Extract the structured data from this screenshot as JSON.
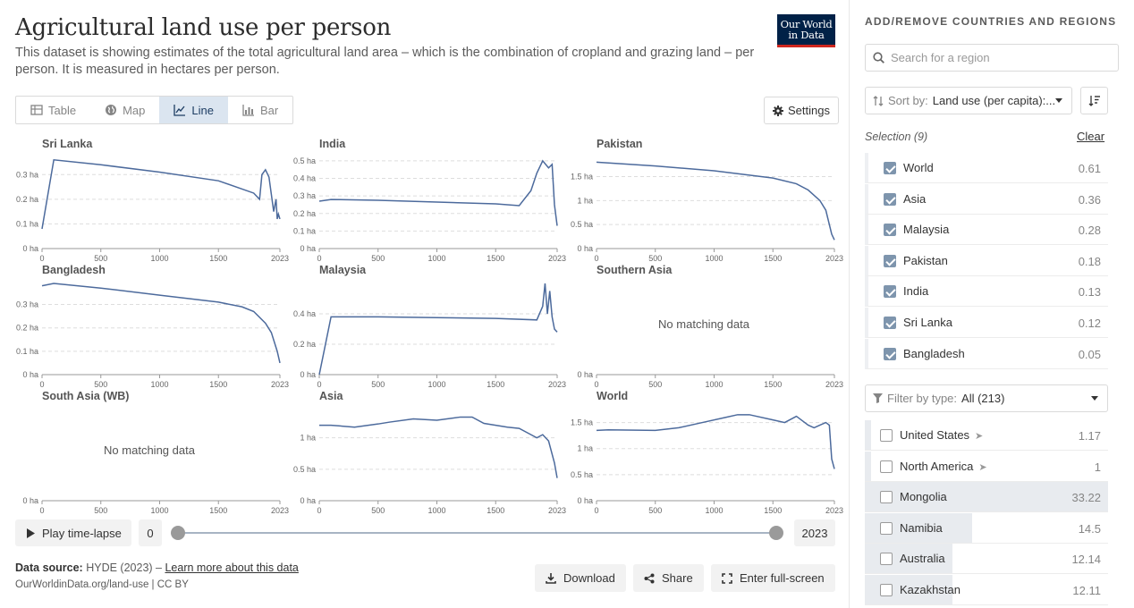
{
  "header": {
    "title": "Agricultural land use per person",
    "subtitle": "This dataset is showing estimates of the total agricultural land area – which is the combination of cropland and grazing land – per person. It is measured in hectares per person.",
    "logo_line1": "Our World",
    "logo_line2": "in Data"
  },
  "tabs": [
    {
      "label": "Table",
      "icon": "table-icon"
    },
    {
      "label": "Map",
      "icon": "globe-icon"
    },
    {
      "label": "Line",
      "icon": "line-chart-icon",
      "active": true
    },
    {
      "label": "Bar",
      "icon": "bar-chart-icon"
    }
  ],
  "settings_label": "Settings",
  "no_data_text": "No matching data",
  "chart_data": [
    {
      "type": "line",
      "title": "Sri Lanka",
      "x_ticks": [
        "0",
        "500",
        "1000",
        "1500",
        "2023"
      ],
      "y_ticks": [
        "0 ha",
        "0.1 ha",
        "0.2 ha",
        "0.3 ha"
      ],
      "ylim": [
        0,
        0.37
      ],
      "x": [
        0,
        100,
        500,
        1000,
        1500,
        1800,
        1850,
        1870,
        1900,
        1930,
        1950,
        1970,
        1990,
        2000,
        2010,
        2023
      ],
      "y": [
        0.08,
        0.36,
        0.34,
        0.31,
        0.275,
        0.225,
        0.2,
        0.3,
        0.32,
        0.29,
        0.22,
        0.15,
        0.2,
        0.12,
        0.14,
        0.12
      ]
    },
    {
      "type": "line",
      "title": "India",
      "x_ticks": [
        "0",
        "500",
        "1000",
        "1500",
        "2023"
      ],
      "y_ticks": [
        "0 ha",
        "0.1 ha",
        "0.2 ha",
        "0.3 ha",
        "0.4 ha",
        "0.5 ha"
      ],
      "ylim": [
        0,
        0.52
      ],
      "x": [
        0,
        100,
        500,
        1000,
        1500,
        1700,
        1800,
        1850,
        1900,
        1950,
        1980,
        2000,
        2023
      ],
      "y": [
        0.27,
        0.28,
        0.275,
        0.265,
        0.255,
        0.245,
        0.33,
        0.43,
        0.5,
        0.46,
        0.48,
        0.25,
        0.13
      ]
    },
    {
      "type": "line",
      "title": "Pakistan",
      "x_ticks": [
        "0",
        "500",
        "1000",
        "1500",
        "2023"
      ],
      "y_ticks": [
        "0 ha",
        "0.5 ha",
        "1 ha",
        "1.5 ha"
      ],
      "ylim": [
        0,
        1.9
      ],
      "x": [
        0,
        500,
        1000,
        1500,
        1700,
        1800,
        1900,
        1950,
        2000,
        2023
      ],
      "y": [
        1.8,
        1.72,
        1.62,
        1.47,
        1.35,
        1.22,
        1.0,
        0.8,
        0.3,
        0.18
      ]
    },
    {
      "type": "line",
      "title": "Bangladesh",
      "x_ticks": [
        "0",
        "500",
        "1000",
        "1500",
        "2023"
      ],
      "y_ticks": [
        "0 ha",
        "0.1 ha",
        "0.2 ha",
        "0.3 ha"
      ],
      "ylim": [
        0,
        0.39
      ],
      "x": [
        0,
        100,
        500,
        1000,
        1500,
        1700,
        1800,
        1900,
        1950,
        2000,
        2023
      ],
      "y": [
        0.38,
        0.39,
        0.37,
        0.34,
        0.31,
        0.29,
        0.27,
        0.22,
        0.18,
        0.1,
        0.05
      ]
    },
    {
      "type": "line",
      "title": "Malaysia",
      "x_ticks": [
        "0",
        "500",
        "1000",
        "1500",
        "2023"
      ],
      "y_ticks": [
        "0 ha",
        "0.2 ha",
        "0.4 ha"
      ],
      "ylim": [
        0,
        0.6
      ],
      "x": [
        0,
        100,
        500,
        1000,
        1500,
        1850,
        1900,
        1920,
        1940,
        1960,
        1980,
        2000,
        2023
      ],
      "y": [
        0.0,
        0.38,
        0.38,
        0.375,
        0.37,
        0.36,
        0.45,
        0.6,
        0.4,
        0.55,
        0.38,
        0.3,
        0.28
      ]
    },
    {
      "type": "line",
      "title": "Southern Asia",
      "x_ticks": [
        "0",
        "500",
        "1000",
        "1500",
        "2023"
      ],
      "y_ticks": [
        "0 ha"
      ],
      "ylim": [
        0,
        1
      ],
      "no_data": true
    },
    {
      "type": "line",
      "title": "South Asia (WB)",
      "x_ticks": [
        "0",
        "500",
        "1000",
        "1500",
        "2023"
      ],
      "y_ticks": [
        "0 ha"
      ],
      "ylim": [
        0,
        1
      ],
      "no_data": true
    },
    {
      "type": "line",
      "title": "Asia",
      "x_ticks": [
        "0",
        "500",
        "1000",
        "1500",
        "2023"
      ],
      "y_ticks": [
        "0 ha",
        "0.5 ha",
        "1 ha"
      ],
      "ylim": [
        0,
        1.45
      ],
      "x": [
        0,
        100,
        300,
        500,
        600,
        800,
        1000,
        1200,
        1300,
        1400,
        1500,
        1600,
        1700,
        1800,
        1850,
        1900,
        1950,
        2000,
        2023
      ],
      "y": [
        1.2,
        1.2,
        1.17,
        1.22,
        1.25,
        1.3,
        1.28,
        1.33,
        1.33,
        1.23,
        1.2,
        1.17,
        1.15,
        1.05,
        1.0,
        1.05,
        0.95,
        0.6,
        0.36
      ]
    },
    {
      "type": "line",
      "title": "World",
      "x_ticks": [
        "0",
        "500",
        "1000",
        "1500",
        "2023"
      ],
      "y_ticks": [
        "0 ha",
        "0.5 ha",
        "1 ha",
        "1.5 ha"
      ],
      "ylim": [
        0,
        1.75
      ],
      "x": [
        0,
        100,
        500,
        700,
        900,
        1100,
        1200,
        1300,
        1500,
        1600,
        1700,
        1800,
        1850,
        1900,
        1950,
        1980,
        2000,
        2023
      ],
      "y": [
        1.35,
        1.36,
        1.35,
        1.4,
        1.5,
        1.6,
        1.65,
        1.65,
        1.55,
        1.5,
        1.62,
        1.45,
        1.4,
        1.45,
        1.5,
        1.45,
        0.8,
        0.61
      ]
    }
  ],
  "controls": {
    "play_label": "Play time-lapse",
    "start_year": "0",
    "end_year": "2023"
  },
  "footer": {
    "source_label": "Data source:",
    "source_text": "HYDE (2023) –",
    "source_link": "Learn more about this data",
    "url": "OurWorldinData.org/land-use | CC BY",
    "download": "Download",
    "share": "Share",
    "fullscreen": "Enter full-screen"
  },
  "sidebar": {
    "heading": "ADD/REMOVE COUNTRIES AND REGIONS",
    "search_placeholder": "Search for a region",
    "sort_label": "Sort by:",
    "sort_value": "Land use (per capita):...",
    "selection_label": "Selection (9)",
    "clear_label": "Clear",
    "selected": [
      {
        "name": "World",
        "value": "0.61"
      },
      {
        "name": "Asia",
        "value": "0.36"
      },
      {
        "name": "Malaysia",
        "value": "0.28"
      },
      {
        "name": "Pakistan",
        "value": "0.18"
      },
      {
        "name": "India",
        "value": "0.13"
      },
      {
        "name": "Sri Lanka",
        "value": "0.12"
      },
      {
        "name": "Bangladesh",
        "value": "0.05"
      }
    ],
    "filter_label": "Filter by type:",
    "filter_value": "All (213)",
    "others": [
      {
        "name": "United States",
        "value": "1.17",
        "arrow": true,
        "fraction": 0.015
      },
      {
        "name": "North America",
        "value": "1",
        "arrow": true,
        "fraction": 0.02
      },
      {
        "name": "Mongolia",
        "value": "33.22",
        "fraction": 1.0
      },
      {
        "name": "Namibia",
        "value": "14.5",
        "fraction": 0.44
      },
      {
        "name": "Australia",
        "value": "12.14",
        "fraction": 0.36
      },
      {
        "name": "Kazakhstan",
        "value": "12.11",
        "fraction": 0.36
      }
    ],
    "line_color": "#4c6a9c"
  }
}
